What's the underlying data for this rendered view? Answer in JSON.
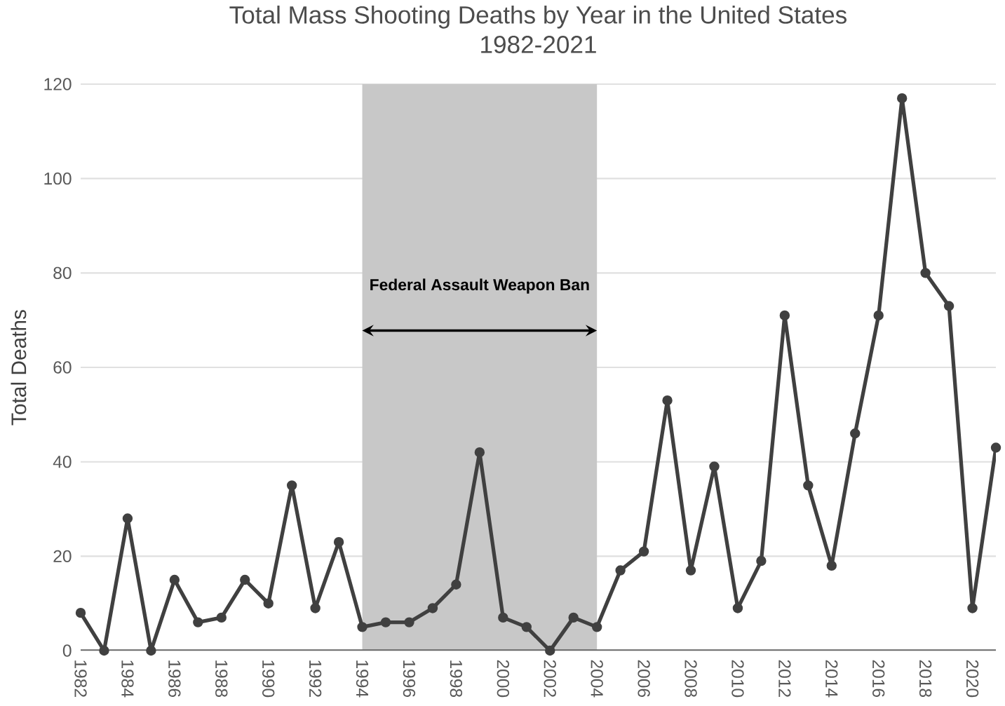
{
  "chart_data": {
    "type": "line",
    "title": "Total Mass Shooting Deaths by Year in the United States",
    "subtitle": "1982-2021",
    "ylabel": "Total Deaths",
    "x": [
      1982,
      1983,
      1984,
      1985,
      1986,
      1987,
      1988,
      1989,
      1990,
      1991,
      1992,
      1993,
      1994,
      1995,
      1996,
      1997,
      1998,
      1999,
      2000,
      2001,
      2002,
      2003,
      2004,
      2005,
      2006,
      2007,
      2008,
      2009,
      2010,
      2011,
      2012,
      2013,
      2014,
      2015,
      2016,
      2017,
      2018,
      2019,
      2020,
      2021
    ],
    "series": [
      {
        "color": "#404040",
        "values": [
          8,
          0,
          28,
          0,
          15,
          6,
          7,
          15,
          10,
          35,
          9,
          23,
          5,
          6,
          6,
          9,
          14,
          42,
          7,
          5,
          0,
          7,
          5,
          17,
          21,
          53,
          17,
          39,
          9,
          19,
          71,
          35,
          18,
          46,
          71,
          117,
          80,
          73,
          9,
          43
        ]
      }
    ],
    "xlim": [
      1982,
      2021
    ],
    "xticks": [
      1982,
      1984,
      1986,
      1988,
      1990,
      1992,
      1994,
      1996,
      1998,
      2000,
      2002,
      2004,
      2006,
      2008,
      2010,
      2012,
      2014,
      2016,
      2018,
      2020
    ],
    "ylim": [
      0,
      120
    ],
    "yticks": [
      0,
      20,
      40,
      60,
      80,
      100,
      120
    ],
    "bands": [
      {
        "axis": "x",
        "from": 1994,
        "to": 2004,
        "label": "Federal Assault Weapon Ban",
        "color": "#c8c8c8"
      }
    ],
    "grid": "y",
    "marker": "circle",
    "line_style": "solid"
  }
}
